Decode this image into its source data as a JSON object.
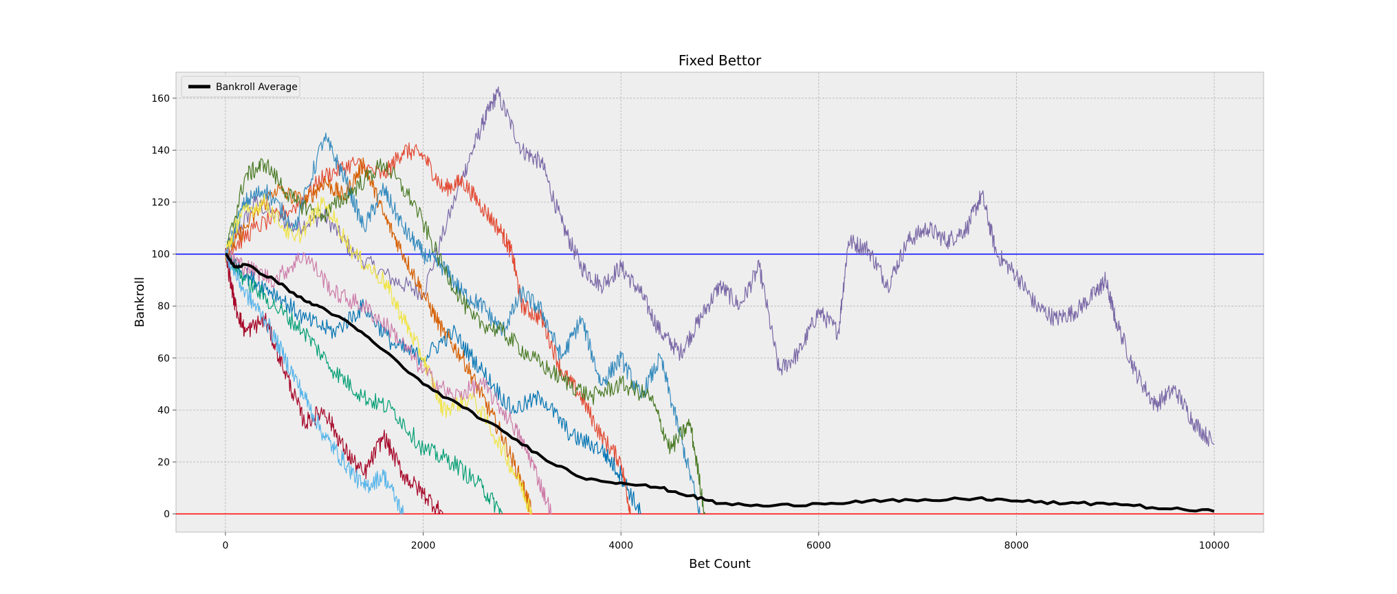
{
  "chart_data": {
    "type": "line",
    "title": "Fixed Bettor",
    "xlabel": "Bet Count",
    "ylabel": "Bankroll",
    "xlim": [
      -500,
      10500
    ],
    "ylim": [
      -7,
      170
    ],
    "xticks": [
      0,
      2000,
      4000,
      6000,
      8000,
      10000
    ],
    "yticks": [
      0,
      20,
      40,
      60,
      80,
      100,
      120,
      140,
      160
    ],
    "grid": true,
    "legend": {
      "position": "top-left",
      "entries": [
        "Bankroll Average"
      ]
    },
    "reference_lines": [
      {
        "y": 100,
        "color": "#0000ff"
      },
      {
        "y": 0,
        "color": "#ff0000"
      }
    ],
    "series": [
      {
        "name": "Bankroll Average",
        "color": "#000000",
        "width": 4,
        "x": [
          0,
          100,
          200,
          500,
          800,
          1000,
          1300,
          1600,
          2000,
          2400,
          2800,
          3200,
          3600,
          4000,
          4400,
          4700,
          5000,
          5500,
          6000,
          6500,
          7000,
          7600,
          8000,
          8500,
          9000,
          9500,
          10000
        ],
        "values": [
          100,
          95,
          96,
          90,
          82,
          79,
          72,
          63,
          50,
          41,
          32,
          22,
          14,
          12,
          10,
          7,
          4,
          3,
          4,
          5,
          5,
          6,
          5,
          4,
          4,
          2,
          1
        ]
      },
      {
        "name": "run-purple",
        "color": "#7a68a6",
        "width": 1.2,
        "x": [
          0,
          300,
          700,
          1000,
          1300,
          1700,
          2000,
          2400,
          2600,
          2750,
          3000,
          3200,
          3400,
          3600,
          3800,
          4000,
          4200,
          4400,
          4600,
          4800,
          5000,
          5200,
          5400,
          5600,
          5800,
          6000,
          6200,
          6300,
          6500,
          6700,
          6900,
          7100,
          7300,
          7500,
          7650,
          7800,
          8000,
          8200,
          8400,
          8600,
          8800,
          8900,
          9000,
          9200,
          9400,
          9600,
          9800,
          10000
        ],
        "values": [
          100,
          120,
          110,
          115,
          100,
          90,
          85,
          130,
          150,
          162,
          140,
          135,
          112,
          95,
          88,
          95,
          85,
          70,
          62,
          75,
          88,
          80,
          95,
          55,
          62,
          78,
          70,
          105,
          102,
          88,
          105,
          110,
          105,
          110,
          123,
          100,
          92,
          80,
          75,
          78,
          85,
          90,
          75,
          55,
          42,
          48,
          35,
          27
        ]
      },
      {
        "name": "run-orange",
        "color": "#e24a33",
        "width": 1.2,
        "x": [
          0,
          300,
          700,
          1000,
          1300,
          1600,
          1800,
          2000,
          2200,
          2400,
          2600,
          2800,
          2900,
          3000,
          3200,
          3400,
          3600,
          3800,
          4000,
          4100
        ],
        "values": [
          100,
          110,
          118,
          130,
          135,
          130,
          140,
          138,
          125,
          128,
          118,
          108,
          100,
          80,
          75,
          55,
          45,
          30,
          20,
          0
        ]
      },
      {
        "name": "run-darkorange",
        "color": "#d55e00",
        "width": 1.2,
        "x": [
          0,
          200,
          500,
          800,
          1000,
          1200,
          1400,
          1600,
          1800,
          2000,
          2200,
          2400,
          2600,
          2800,
          3000,
          3100
        ],
        "values": [
          100,
          110,
          125,
          120,
          128,
          122,
          135,
          115,
          100,
          85,
          70,
          60,
          45,
          30,
          12,
          0
        ]
      },
      {
        "name": "run-blue-a",
        "color": "#348abd",
        "width": 1.2,
        "x": [
          0,
          200,
          400,
          700,
          1000,
          1200,
          1400,
          1600,
          1800,
          2000,
          2200,
          2400,
          2600,
          2800,
          3000,
          3200,
          3400,
          3600,
          3800,
          4000,
          4200,
          4400,
          4600,
          4800
        ],
        "values": [
          100,
          120,
          125,
          110,
          145,
          130,
          110,
          125,
          110,
          100,
          95,
          85,
          80,
          70,
          85,
          78,
          60,
          75,
          50,
          60,
          45,
          60,
          30,
          0
        ]
      },
      {
        "name": "run-blue-b",
        "color": "#0072b2",
        "width": 1.2,
        "x": [
          0,
          200,
          500,
          800,
          1100,
          1400,
          1700,
          2000,
          2300,
          2600,
          2900,
          3200,
          3500,
          3800,
          4000,
          4200
        ],
        "values": [
          100,
          92,
          85,
          75,
          70,
          80,
          65,
          60,
          70,
          55,
          40,
          45,
          30,
          25,
          15,
          0
        ]
      },
      {
        "name": "run-green-a",
        "color": "#467821",
        "width": 1.2,
        "x": [
          0,
          200,
          400,
          700,
          1000,
          1300,
          1600,
          1900,
          2200,
          2500,
          2800,
          3100,
          3400,
          3700,
          4000,
          4300,
          4500,
          4700,
          4850
        ],
        "values": [
          100,
          130,
          135,
          120,
          115,
          125,
          135,
          120,
          95,
          75,
          70,
          60,
          52,
          45,
          50,
          45,
          25,
          35,
          0
        ]
      },
      {
        "name": "run-green-b",
        "color": "#009e73",
        "width": 1.2,
        "x": [
          0,
          200,
          500,
          800,
          1100,
          1400,
          1700,
          2000,
          2300,
          2600,
          2800
        ],
        "values": [
          100,
          90,
          80,
          70,
          55,
          45,
          40,
          25,
          20,
          10,
          0
        ]
      },
      {
        "name": "run-yellow",
        "color": "#f0e442",
        "width": 1.2,
        "x": [
          0,
          150,
          400,
          700,
          1000,
          1300,
          1600,
          1800,
          2000,
          2200,
          2500,
          2800,
          3000,
          3100
        ],
        "values": [
          100,
          115,
          120,
          105,
          120,
          100,
          90,
          75,
          60,
          40,
          45,
          25,
          10,
          0
        ]
      },
      {
        "name": "run-pink",
        "color": "#cc79a7",
        "width": 1.2,
        "x": [
          0,
          200,
          500,
          800,
          1100,
          1400,
          1700,
          2000,
          2300,
          2600,
          2900,
          3100,
          3300
        ],
        "values": [
          100,
          95,
          90,
          100,
          85,
          80,
          70,
          55,
          45,
          50,
          35,
          20,
          0
        ]
      },
      {
        "name": "run-red",
        "color": "#a60628",
        "width": 1.2,
        "x": [
          0,
          100,
          200,
          400,
          600,
          800,
          1000,
          1200,
          1400,
          1600,
          1800,
          2000,
          2200
        ],
        "values": [
          100,
          80,
          70,
          75,
          55,
          35,
          40,
          25,
          15,
          30,
          15,
          8,
          0
        ]
      },
      {
        "name": "run-skyblue",
        "color": "#56b4e9",
        "width": 1.2,
        "x": [
          0,
          200,
          400,
          600,
          800,
          1000,
          1200,
          1400,
          1600,
          1800
        ],
        "values": [
          100,
          85,
          75,
          60,
          45,
          30,
          20,
          10,
          15,
          0
        ]
      }
    ]
  }
}
